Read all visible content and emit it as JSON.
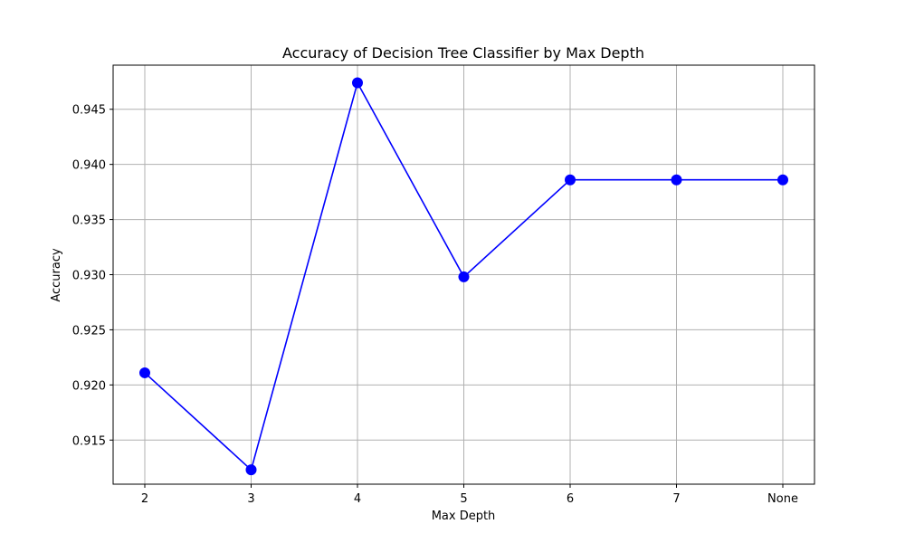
{
  "chart_data": {
    "type": "line",
    "title": "Accuracy of Decision Tree Classifier by Max Depth",
    "xlabel": "Max Depth",
    "ylabel": "Accuracy",
    "categories": [
      "2",
      "3",
      "4",
      "5",
      "6",
      "7",
      "None"
    ],
    "series": [
      {
        "values": [
          0.9211,
          0.9123,
          0.9474,
          0.9298,
          0.9386,
          0.9386,
          0.9386
        ]
      }
    ],
    "ylim": [
      0.911,
      0.949
    ],
    "yticks": [
      "0.915",
      "0.920",
      "0.925",
      "0.930",
      "0.935",
      "0.940",
      "0.945"
    ],
    "ytick_values": [
      0.915,
      0.92,
      0.925,
      0.93,
      0.935,
      0.94,
      0.945
    ],
    "grid": true,
    "marker": "circle",
    "colors": {
      "line": "#0000ff",
      "grid": "#b0b0b0",
      "axes": "#000000"
    }
  }
}
